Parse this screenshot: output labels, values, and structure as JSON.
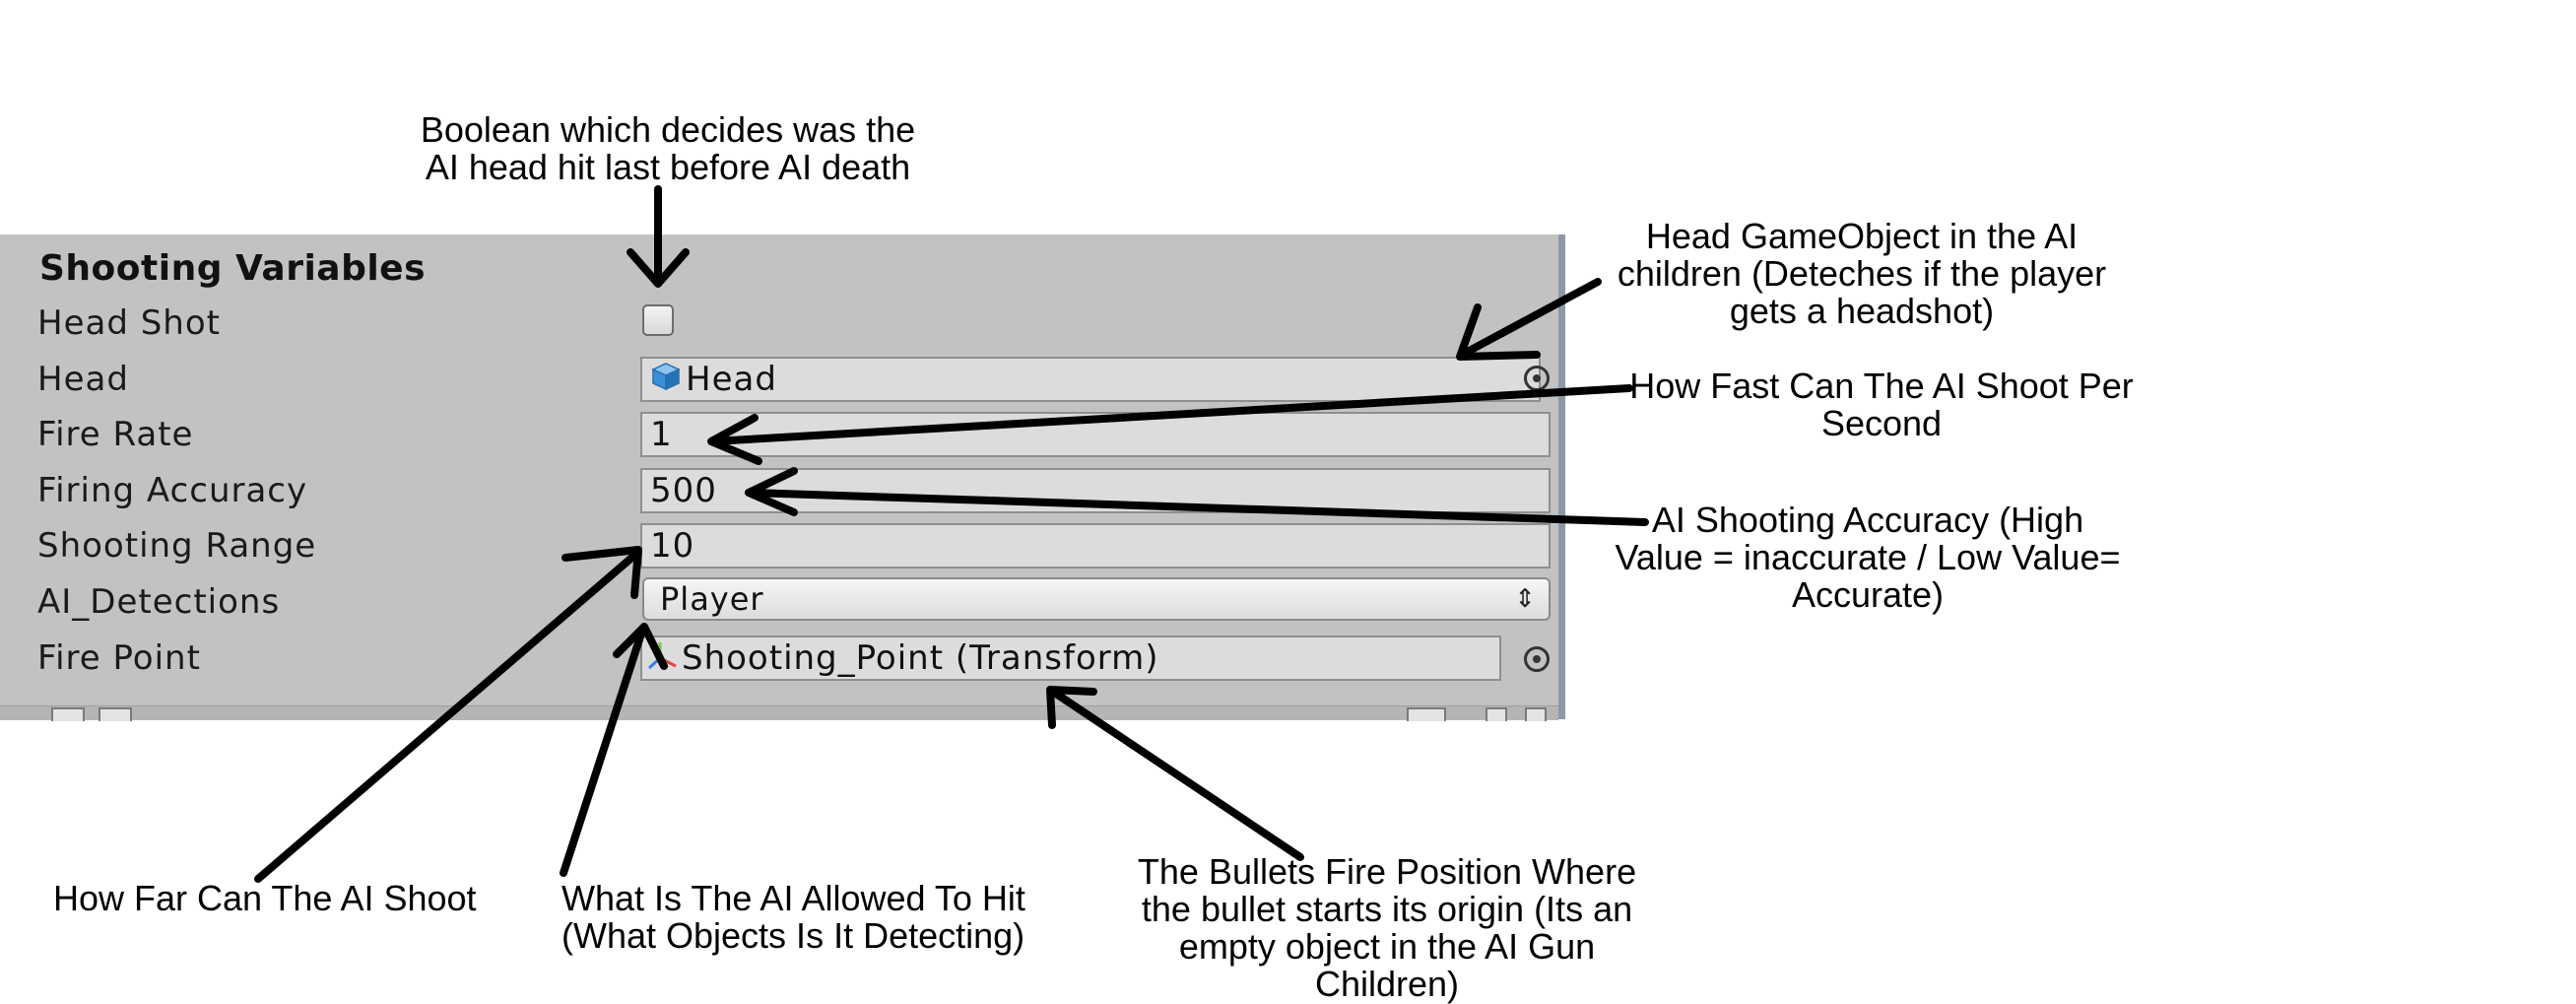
{
  "inspector": {
    "section_title": "Shooting Variables",
    "fields": [
      {
        "label": "Head Shot",
        "type": "checkbox",
        "checked": false
      },
      {
        "label": "Head",
        "type": "object",
        "value": "Head",
        "icon": "cube-icon"
      },
      {
        "label": "Fire Rate",
        "type": "number",
        "value": "1"
      },
      {
        "label": "Firing Accuracy",
        "type": "number",
        "value": "500"
      },
      {
        "label": "Shooting Range",
        "type": "number",
        "value": "10"
      },
      {
        "label": "AI_Detections",
        "type": "dropdown",
        "value": "Player"
      },
      {
        "label": "Fire Point",
        "type": "object",
        "value": "Shooting_Point (Transform)",
        "icon": "transform-axes-icon"
      }
    ]
  },
  "annotations": {
    "head_shot": [
      "Boolean which decides was the",
      "AI head hit last before AI death"
    ],
    "head": [
      "Head GameObject in the AI",
      "children (Deteches if the player",
      "gets a headshot)"
    ],
    "fire_rate": [
      "How Fast Can The AI Shoot Per",
      "Second"
    ],
    "firing_accuracy": [
      "AI Shooting Accuracy (High",
      "Value = inaccurate / Low Value=",
      "Accurate)"
    ],
    "shooting_range": [
      "How Far Can The AI Shoot"
    ],
    "ai_detections": [
      "What Is The AI Allowed To Hit",
      "(What Objects Is It Detecting)"
    ],
    "fire_point": [
      "The Bullets Fire Position Where",
      "the bullet starts its origin (Its an",
      "empty object in the AI Gun",
      "Children)"
    ]
  },
  "colors": {
    "panel_bg": "#c2c2c2",
    "field_bg": "#dcdcdc",
    "head_icon": "#3a8fd6"
  }
}
